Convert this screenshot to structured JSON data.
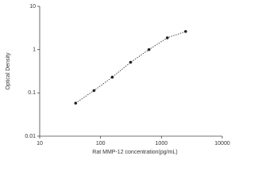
{
  "chart_data": {
    "type": "scatter",
    "x_label": "Rat MMP-12 concentration(pg/mL)",
    "y_label": "Optical Density",
    "x": [
      39,
      78,
      156,
      312,
      625,
      1250,
      2500
    ],
    "series": [
      {
        "values": [
          0.058,
          0.113,
          0.231,
          0.51,
          1.0,
          1.87,
          2.62
        ],
        "color": "#222222"
      }
    ],
    "x_log": true,
    "y_log": true,
    "xlim": [
      10,
      10000
    ],
    "xticks": [
      10,
      100,
      1000,
      10000
    ],
    "ylim": [
      0.01,
      10
    ],
    "yticks": [
      0.01,
      0.1,
      1,
      10
    ],
    "line_style": "dotted"
  }
}
